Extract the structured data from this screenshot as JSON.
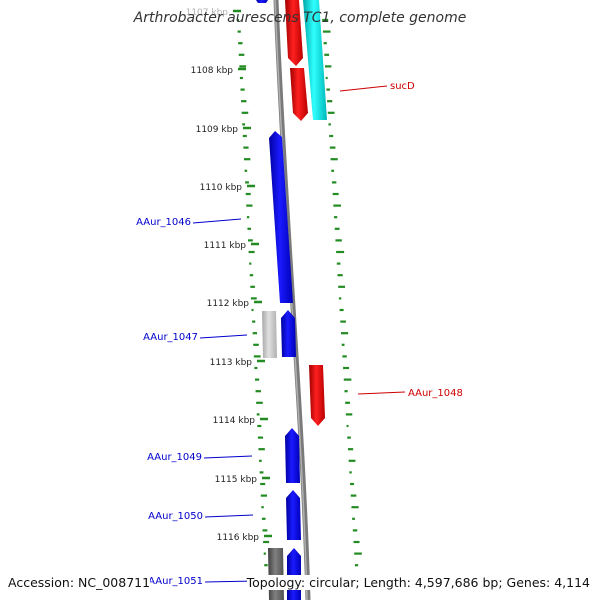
{
  "header": {
    "title": "Arthrobacter aurescens TC1, complete genome"
  },
  "footer": {
    "accession": "Accession: NC_008711",
    "summary": "Topology: circular; Length: 4,597,686 bp; Genes: 4,114"
  },
  "colors": {
    "forward_gene": "#0000e6",
    "reverse_gene": "#ee0000",
    "other_forward": "#00e0e0",
    "pseudo_light": "#c8c8c8",
    "pseudo_dark": "#606060",
    "backbone": "#808080",
    "gc_skew": "#228b22",
    "label_forward": "#0000cc",
    "label_reverse": "#cc0000"
  },
  "ticks": [
    {
      "label": "1107 kbp"
    },
    {
      "label": "1108 kbp"
    },
    {
      "label": "1109 kbp"
    },
    {
      "label": "1110 kbp"
    },
    {
      "label": "1111 kbp"
    },
    {
      "label": "1112 kbp"
    },
    {
      "label": "1113 kbp"
    },
    {
      "label": "1114 kbp"
    },
    {
      "label": "1115 kbp"
    },
    {
      "label": "1116 kbp"
    }
  ],
  "gene_labels": [
    {
      "name": "sucD",
      "strand": "reverse"
    },
    {
      "name": "AAur_1046",
      "strand": "forward"
    },
    {
      "name": "AAur_1047",
      "strand": "forward"
    },
    {
      "name": "AAur_1048",
      "strand": "reverse"
    },
    {
      "name": "AAur_1049",
      "strand": "forward"
    },
    {
      "name": "AAur_1050",
      "strand": "forward"
    },
    {
      "name": "AAur_1051",
      "strand": "forward"
    }
  ]
}
